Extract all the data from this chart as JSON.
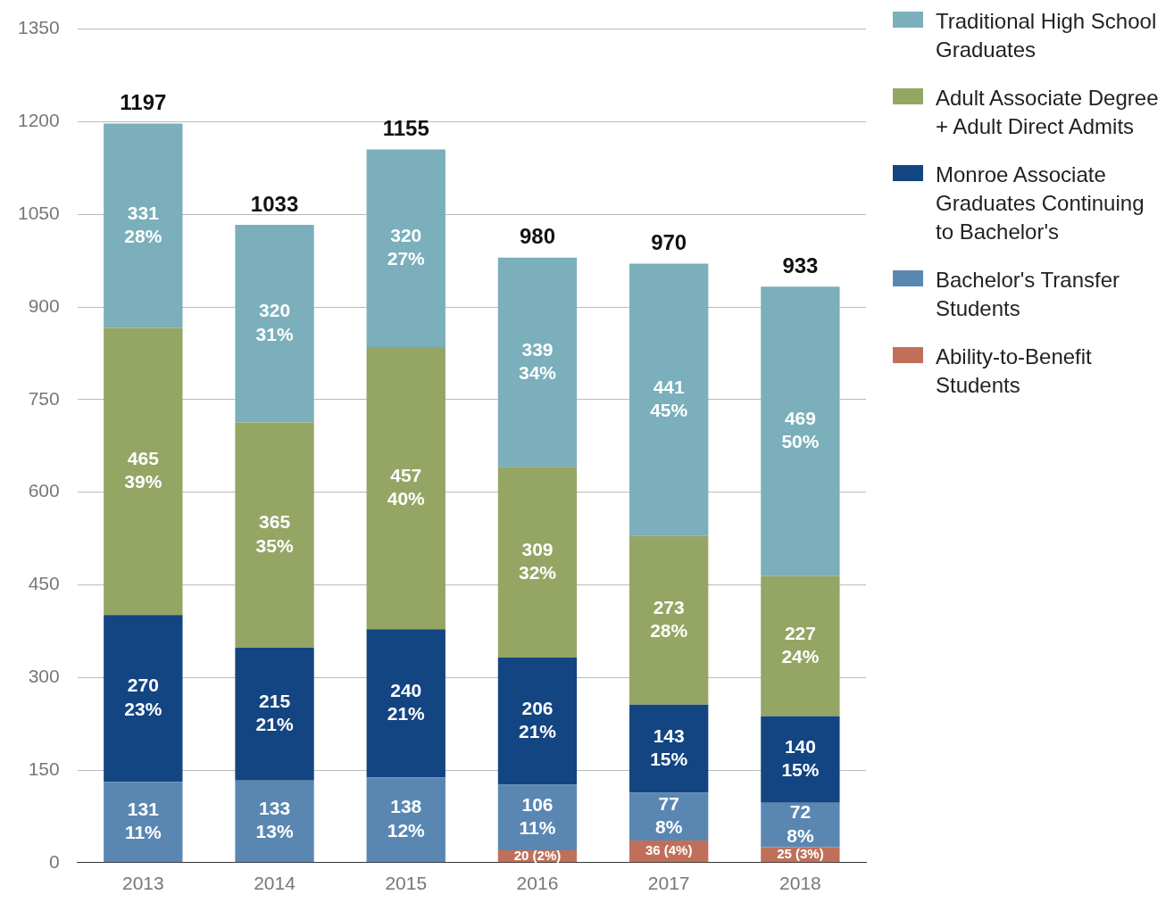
{
  "chart_data": {
    "type": "bar",
    "stacked": true,
    "categories": [
      "2013",
      "2014",
      "2015",
      "2016",
      "2017",
      "2018"
    ],
    "series": [
      {
        "name": "Ability-to-Benefit Students",
        "color": "#c0705a",
        "values": [
          null,
          null,
          null,
          20,
          36,
          25
        ],
        "value_labels": [
          null,
          null,
          null,
          "20 (2%)",
          "36 (4%)",
          "25 (3%)"
        ]
      },
      {
        "name": "Bachelor's Transfer Students",
        "color": "#5a87b2",
        "values": [
          131,
          133,
          138,
          106,
          77,
          72
        ],
        "value_labels": [
          "131\n11%",
          "133\n13%",
          "138\n12%",
          "106\n11%",
          "77\n8%",
          "72\n8%"
        ]
      },
      {
        "name": "Monroe Associate Graduates Continuing to Bachelor's",
        "color": "#134582",
        "values": [
          270,
          215,
          240,
          206,
          143,
          140
        ],
        "value_labels": [
          "270\n23%",
          "215\n21%",
          "240\n21%",
          "206\n21%",
          "143\n15%",
          "140\n15%"
        ]
      },
      {
        "name": "Adult Associate Degree + Adult Direct Admits",
        "color": "#95a564",
        "values": [
          465,
          365,
          457,
          309,
          273,
          227
        ],
        "value_labels": [
          "465\n39%",
          "365\n35%",
          "457\n40%",
          "309\n32%",
          "273\n28%",
          "227\n24%"
        ]
      },
      {
        "name": "Traditional High School Graduates",
        "color": "#7aafbb",
        "values": [
          331,
          320,
          320,
          339,
          441,
          469
        ],
        "value_labels": [
          "331\n28%",
          "320\n31%",
          "320\n27%",
          "339\n34%",
          "441\n45%",
          "469\n50%"
        ]
      }
    ],
    "totals": [
      "1197",
      "1033",
      "1155",
      "980",
      "970",
      "933"
    ],
    "ylim": [
      0,
      1350
    ],
    "yticks": [
      0,
      150,
      300,
      450,
      600,
      750,
      900,
      1050,
      1200,
      1350
    ],
    "grid": "y",
    "legend": "top right"
  }
}
